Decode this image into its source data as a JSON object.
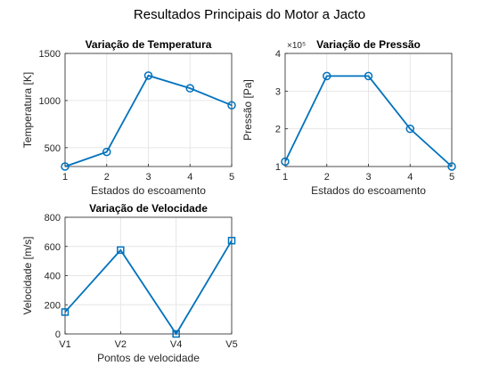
{
  "figure_title": "Resultados Principais do Motor a Jacto",
  "colors": {
    "series": "#0072bd",
    "grid": "#e6e6e6",
    "axis": "#262626"
  },
  "chart_data": [
    {
      "type": "line",
      "title": "Variação de Temperatura",
      "xlabel": "Estados do escoamento",
      "ylabel": "Temperatura [K]",
      "x": [
        1,
        2,
        3,
        4,
        5
      ],
      "x_tick_labels": [
        "1",
        "2",
        "3",
        "4",
        "5"
      ],
      "xlim": [
        1,
        5
      ],
      "ylim": [
        300,
        1500
      ],
      "y_ticks": [
        500,
        1000,
        1500
      ],
      "y_tick_labels": [
        "500",
        "1000",
        "1500"
      ],
      "y_exponent_label": "",
      "marker": "circle",
      "grid": true,
      "series": [
        {
          "values": [
            300,
            455,
            1265,
            1130,
            950
          ]
        }
      ]
    },
    {
      "type": "line",
      "title": "Variação de Pressão",
      "xlabel": "Estados do escoamento",
      "ylabel": "Pressão [Pa]",
      "x": [
        1,
        2,
        3,
        4,
        5
      ],
      "x_tick_labels": [
        "1",
        "2",
        "3",
        "4",
        "5"
      ],
      "xlim": [
        1,
        5
      ],
      "ylim": [
        100000,
        400000
      ],
      "y_ticks": [
        100000,
        200000,
        300000,
        400000
      ],
      "y_tick_labels": [
        "1",
        "2",
        "3",
        "4"
      ],
      "y_exponent_label": "×10⁵",
      "marker": "circle",
      "grid": true,
      "series": [
        {
          "values": [
            113000,
            340000,
            340000,
            200000,
            100000
          ]
        }
      ]
    },
    {
      "type": "line",
      "title": "Variação de Velocidade",
      "xlabel": "Pontos de velocidade",
      "ylabel": "Velocidade [m/s]",
      "x": [
        1,
        2,
        3,
        4
      ],
      "x_tick_labels": [
        "V1",
        "V2",
        "V4",
        "V5"
      ],
      "xlim": [
        1,
        4
      ],
      "ylim": [
        0,
        800
      ],
      "y_ticks": [
        0,
        200,
        400,
        600,
        800
      ],
      "y_tick_labels": [
        "0",
        "200",
        "400",
        "600",
        "800"
      ],
      "y_exponent_label": "",
      "marker": "square",
      "grid": true,
      "series": [
        {
          "values": [
            150,
            575,
            0,
            640
          ]
        }
      ]
    }
  ]
}
